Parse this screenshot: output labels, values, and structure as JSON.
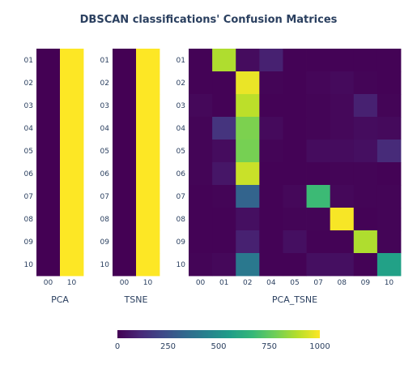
{
  "title": "DBSCAN classifications' Confusion Matrices",
  "chart_data": [
    {
      "type": "heatmap",
      "xlabel": "PCA",
      "x": [
        "00",
        "10"
      ],
      "y": [
        "01",
        "02",
        "03",
        "04",
        "05",
        "06",
        "07",
        "08",
        "09",
        "10"
      ],
      "z": [
        [
          0,
          1000
        ],
        [
          0,
          1000
        ],
        [
          0,
          1000
        ],
        [
          0,
          1000
        ],
        [
          0,
          1000
        ],
        [
          0,
          1000
        ],
        [
          0,
          1000
        ],
        [
          0,
          1000
        ],
        [
          0,
          1000
        ],
        [
          0,
          1000
        ]
      ]
    },
    {
      "type": "heatmap",
      "xlabel": "TSNE",
      "x": [
        "00",
        "10"
      ],
      "y": [
        "01",
        "02",
        "03",
        "04",
        "05",
        "06",
        "07",
        "08",
        "09",
        "10"
      ],
      "z": [
        [
          0,
          1000
        ],
        [
          0,
          1000
        ],
        [
          0,
          1000
        ],
        [
          0,
          1000
        ],
        [
          0,
          1000
        ],
        [
          0,
          1000
        ],
        [
          0,
          1000
        ],
        [
          0,
          1000
        ],
        [
          0,
          1000
        ],
        [
          0,
          1000
        ]
      ]
    },
    {
      "type": "heatmap",
      "xlabel": "PCA_TSNE",
      "x": [
        "00",
        "01",
        "02",
        "04",
        "05",
        "07",
        "08",
        "09",
        "10"
      ],
      "y": [
        "01",
        "02",
        "03",
        "04",
        "05",
        "06",
        "07",
        "08",
        "09",
        "10"
      ],
      "z": [
        [
          5,
          880,
          30,
          90,
          5,
          5,
          5,
          5,
          5
        ],
        [
          5,
          5,
          970,
          10,
          5,
          15,
          25,
          10,
          5
        ],
        [
          20,
          5,
          900,
          5,
          5,
          10,
          20,
          90,
          10
        ],
        [
          10,
          150,
          800,
          25,
          5,
          10,
          20,
          30,
          25
        ],
        [
          10,
          30,
          790,
          10,
          5,
          30,
          30,
          40,
          120
        ],
        [
          10,
          60,
          920,
          5,
          5,
          5,
          10,
          10,
          5
        ],
        [
          5,
          10,
          320,
          5,
          20,
          680,
          20,
          10,
          10
        ],
        [
          5,
          5,
          40,
          5,
          10,
          10,
          990,
          5,
          10
        ],
        [
          5,
          5,
          90,
          5,
          40,
          5,
          5,
          880,
          10
        ],
        [
          10,
          20,
          400,
          5,
          5,
          40,
          40,
          5,
          570
        ]
      ]
    }
  ],
  "colorbar": {
    "range": [
      0,
      1000
    ],
    "ticks": [
      0,
      250,
      500,
      750,
      1000
    ],
    "tick_labels": [
      "0",
      "250",
      "500",
      "750",
      "1000"
    ],
    "colorscale": [
      "#440154",
      "#482878",
      "#3e4989",
      "#31688e",
      "#26828e",
      "#1f9e89",
      "#35b779",
      "#6ece58",
      "#b5de2b",
      "#fde725"
    ]
  }
}
